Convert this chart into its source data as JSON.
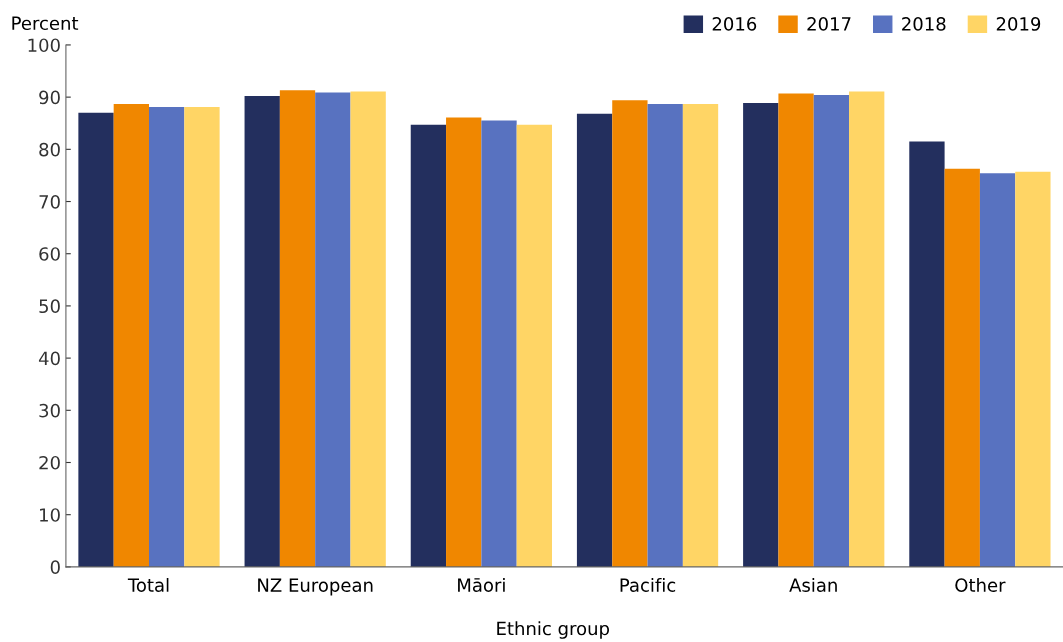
{
  "chart_data": {
    "type": "bar",
    "ylabel": "Percent",
    "xlabel": "Ethnic group",
    "categories": [
      "Total",
      "NZ European",
      "Māori",
      "Pacific",
      "Asian",
      "Other"
    ],
    "series": [
      {
        "name": "2016",
        "color": "#232f5e",
        "values": [
          87.0,
          90.2,
          84.7,
          86.8,
          88.9,
          81.5
        ]
      },
      {
        "name": "2017",
        "color": "#f08700",
        "values": [
          88.7,
          91.3,
          86.1,
          89.4,
          90.7,
          76.3
        ]
      },
      {
        "name": "2018",
        "color": "#5872c0",
        "values": [
          88.1,
          90.9,
          85.5,
          88.7,
          90.4,
          75.4
        ]
      },
      {
        "name": "2019",
        "color": "#ffd565",
        "values": [
          88.1,
          91.1,
          84.7,
          88.7,
          91.1,
          75.7
        ]
      }
    ],
    "ylim": [
      0,
      100
    ],
    "yticks": [
      0,
      10,
      20,
      30,
      40,
      50,
      60,
      70,
      80,
      90,
      100
    ],
    "grid": false,
    "legend": "top right"
  }
}
